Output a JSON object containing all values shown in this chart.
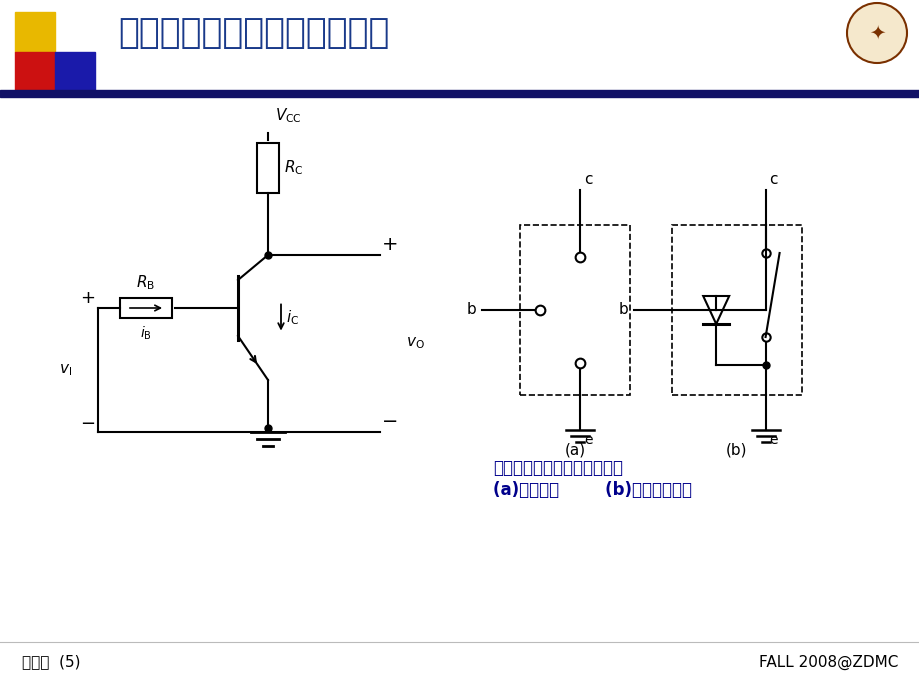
{
  "title": "双极型三极管的基本开关电路",
  "footer_left": "门电路  (5)",
  "footer_right": "FALL 2008@ZDMC",
  "caption_line1": "双极型三极管的开关等效电路",
  "caption_line2": "(a)截止状态        (b)饱和导通状态",
  "label_a": "(a)",
  "label_b": "(b)",
  "title_color": "#1a3a8a",
  "caption_color": "#00008b",
  "black": "#000000",
  "deco_yellow": "#e8b800",
  "deco_red": "#cc1111",
  "deco_blue": "#1a1aaa",
  "header_line_color": "#111166"
}
